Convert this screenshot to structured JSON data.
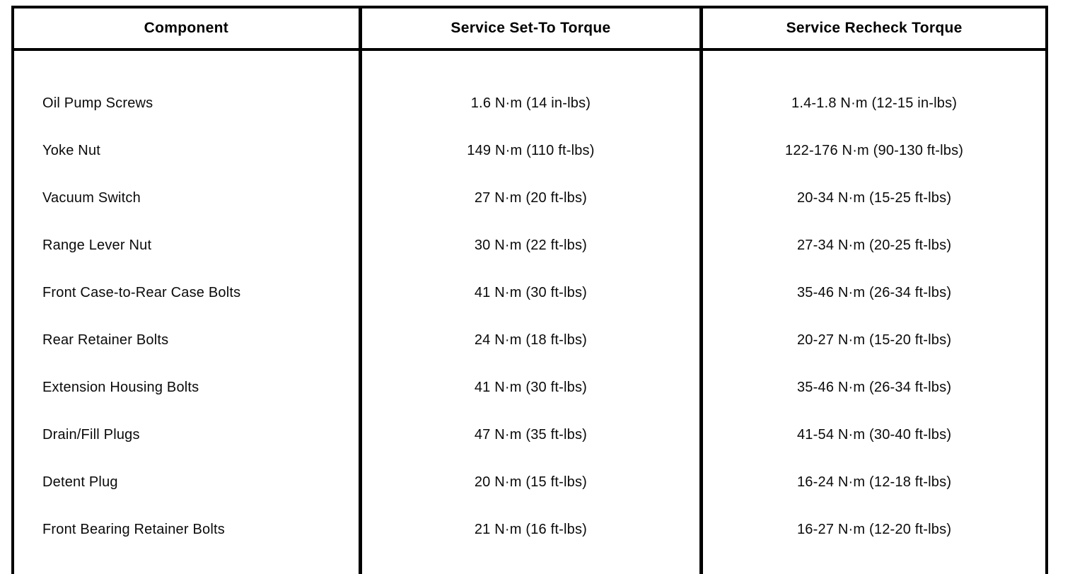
{
  "table": {
    "headers": {
      "component": "Component",
      "set_to": "Service Set-To Torque",
      "recheck": "Service Recheck Torque"
    },
    "rows": [
      {
        "component": "Oil Pump Screws",
        "set_to": "1.6 N·m (14 in-lbs)",
        "recheck": "1.4-1.8 N·m (12-15 in-lbs)"
      },
      {
        "component": "Yoke Nut",
        "set_to": "149 N·m (110 ft-lbs)",
        "recheck": "122-176 N·m (90-130 ft-lbs)"
      },
      {
        "component": "Vacuum Switch",
        "set_to": "27 N·m (20 ft-lbs)",
        "recheck": "20-34 N·m (15-25 ft-lbs)"
      },
      {
        "component": "Range Lever Nut",
        "set_to": "30 N·m (22 ft-lbs)",
        "recheck": "27-34 N·m (20-25 ft-lbs)"
      },
      {
        "component": "Front Case-to-Rear Case Bolts",
        "set_to": "41 N·m (30 ft-lbs)",
        "recheck": "35-46 N·m (26-34 ft-lbs)"
      },
      {
        "component": "Rear Retainer Bolts",
        "set_to": "24 N·m (18 ft-lbs)",
        "recheck": "20-27 N·m (15-20 ft-lbs)"
      },
      {
        "component": "Extension Housing Bolts",
        "set_to": "41 N·m (30 ft-lbs)",
        "recheck": "35-46 N·m (26-34 ft-lbs)"
      },
      {
        "component": "Drain/Fill Plugs",
        "set_to": "47 N·m (35 ft-lbs)",
        "recheck": "41-54 N·m (30-40 ft-lbs)"
      },
      {
        "component": "Detent Plug",
        "set_to": "20 N·m (15 ft-lbs)",
        "recheck": "16-24 N·m (12-18 ft-lbs)"
      },
      {
        "component": "Front Bearing Retainer Bolts",
        "set_to": "21 N·m (16 ft-lbs)",
        "recheck": "16-27 N·m (12-20 ft-lbs)"
      }
    ]
  },
  "colors": {
    "border": "#000000",
    "text": "#0a0a0a",
    "background": "#ffffff"
  }
}
